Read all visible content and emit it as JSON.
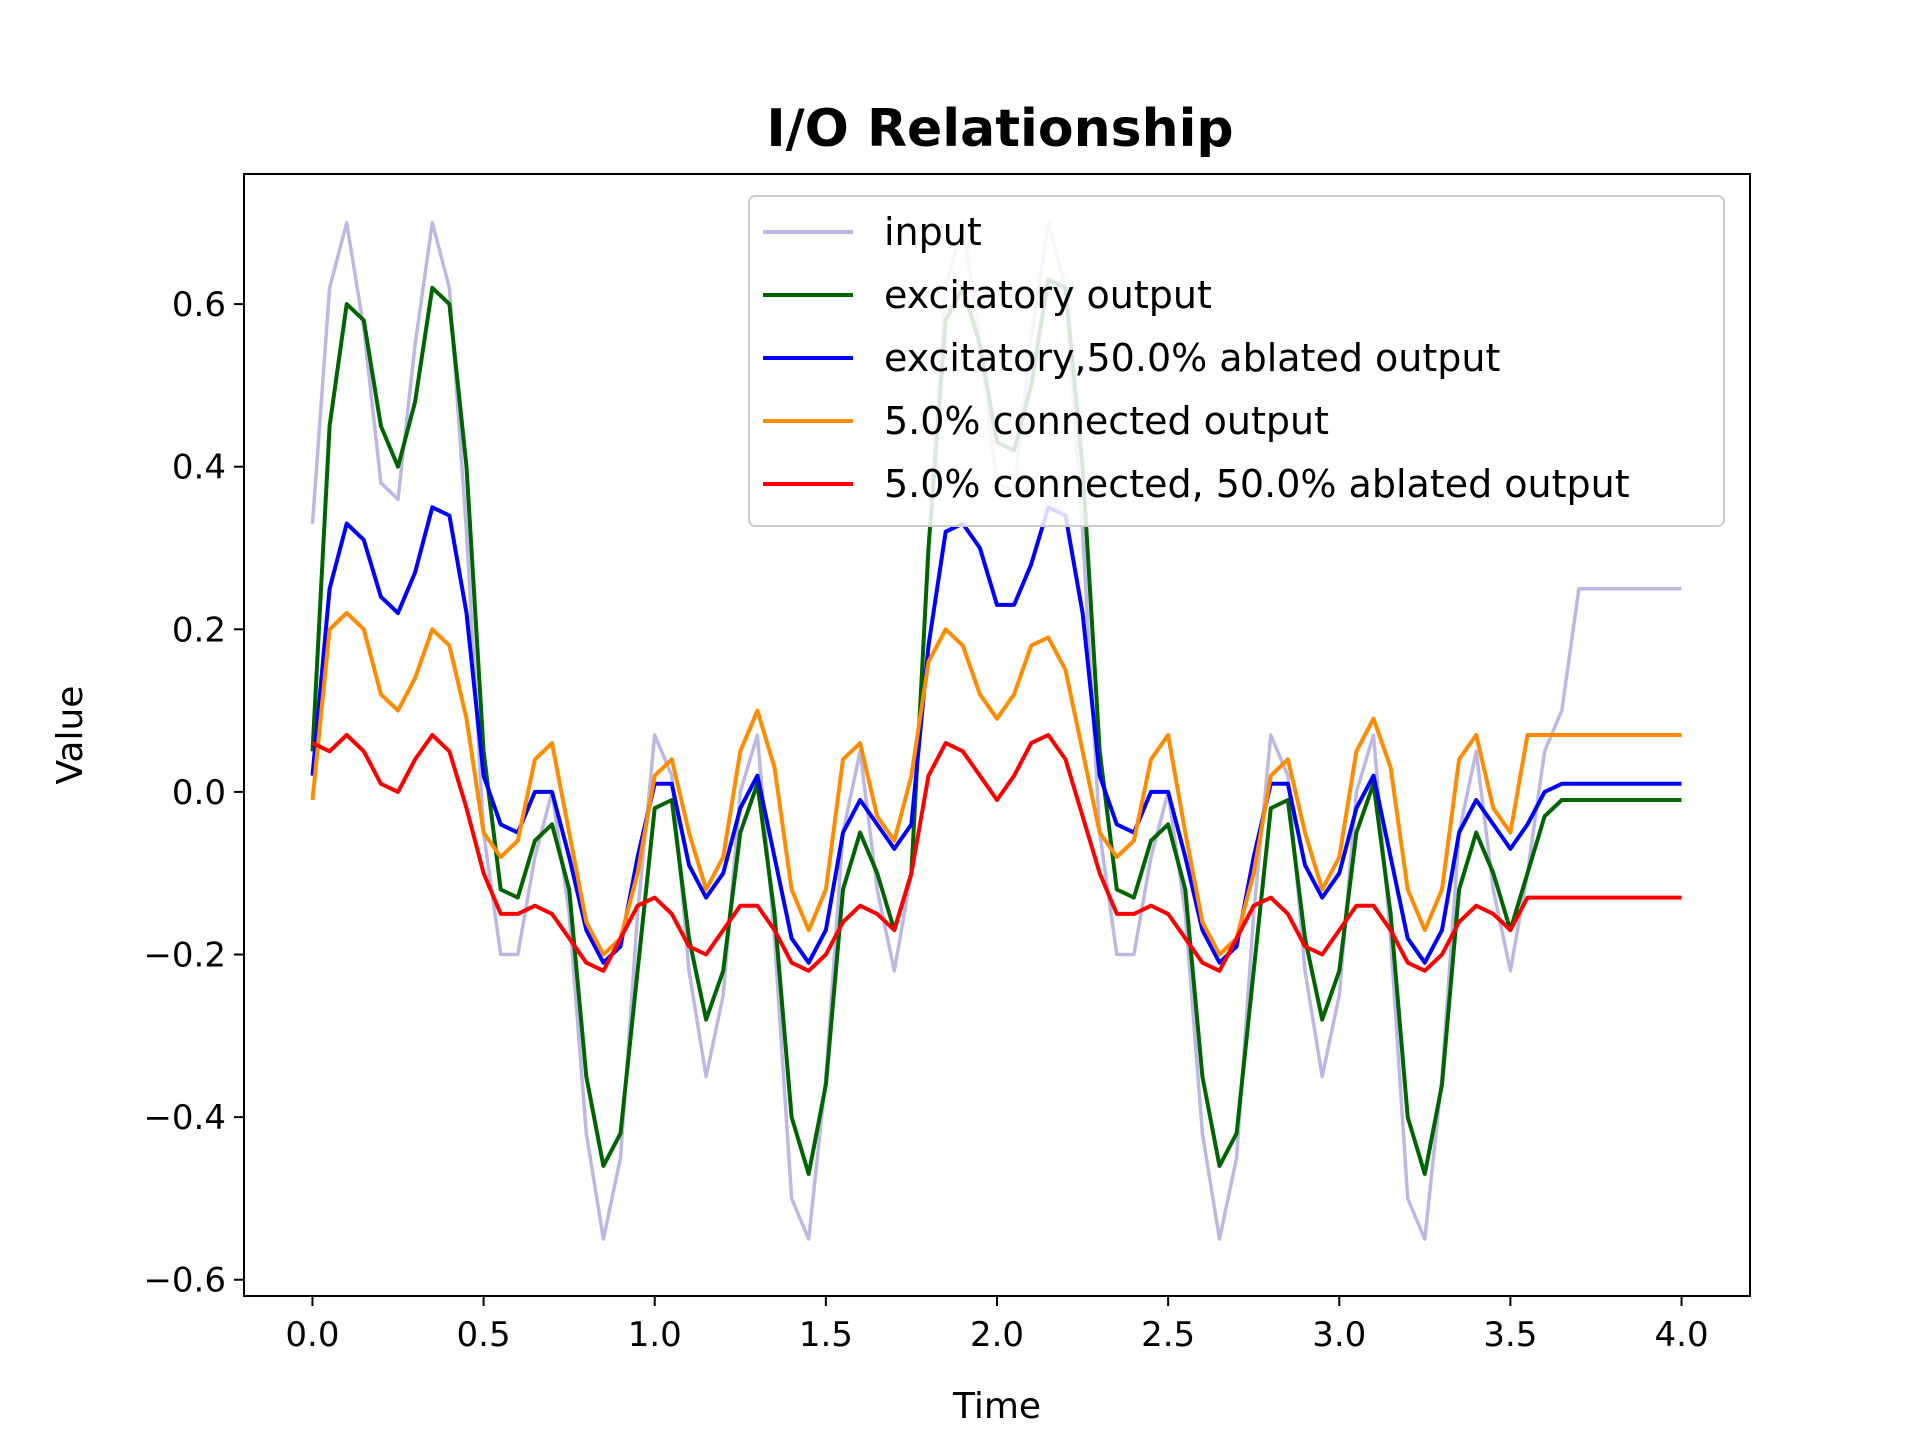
{
  "chart_data": {
    "type": "line",
    "title": "I/O Relationship",
    "xlabel": "Time",
    "ylabel": "Value",
    "xlim": [
      -0.2,
      4.2
    ],
    "ylim": [
      -0.62,
      0.76
    ],
    "xticks": [
      0.0,
      0.5,
      1.0,
      1.5,
      2.0,
      2.5,
      3.0,
      3.5,
      4.0
    ],
    "xtick_labels": [
      "0.0",
      "0.5",
      "1.0",
      "1.5",
      "2.0",
      "2.5",
      "3.0",
      "3.5",
      "4.0"
    ],
    "yticks": [
      -0.6,
      -0.4,
      -0.2,
      0.0,
      0.2,
      0.4,
      0.6
    ],
    "ytick_labels": [
      "−0.6",
      "−0.4",
      "−0.2",
      "0.0",
      "0.2",
      "0.4",
      "0.6"
    ],
    "grid": false,
    "legend_position": "top-right",
    "x": [
      0.0,
      0.05,
      0.1,
      0.15,
      0.2,
      0.25,
      0.3,
      0.35,
      0.4,
      0.45,
      0.5,
      0.55,
      0.6,
      0.65,
      0.7,
      0.75,
      0.8,
      0.85,
      0.9,
      0.95,
      1.0,
      1.05,
      1.1,
      1.15,
      1.2,
      1.25,
      1.3,
      1.35,
      1.4,
      1.45,
      1.5,
      1.55,
      1.6,
      1.65,
      1.7,
      1.75,
      1.8,
      1.85,
      1.9,
      1.95,
      2.0,
      2.05,
      2.1,
      2.15,
      2.2,
      2.25,
      2.3,
      2.35,
      2.4,
      2.45,
      2.5,
      2.55,
      2.6,
      2.65,
      2.7,
      2.75,
      2.8,
      2.85,
      2.9,
      2.95,
      3.0,
      3.05,
      3.1,
      3.15,
      3.2,
      3.25,
      3.3,
      3.35,
      3.4,
      3.45,
      3.5,
      3.55,
      3.6,
      3.65,
      3.7,
      3.75,
      3.8,
      3.85,
      3.9,
      3.95,
      4.0
    ],
    "series": [
      {
        "name": "input",
        "color": "#bdb8e3",
        "values": [
          0.33,
          0.62,
          0.7,
          0.57,
          0.38,
          0.36,
          0.55,
          0.7,
          0.62,
          0.32,
          -0.05,
          -0.2,
          -0.2,
          -0.08,
          0.0,
          -0.15,
          -0.42,
          -0.55,
          -0.45,
          -0.15,
          0.07,
          0.02,
          -0.22,
          -0.35,
          -0.25,
          0.0,
          0.07,
          -0.18,
          -0.5,
          -0.55,
          -0.35,
          -0.05,
          0.05,
          -0.12,
          -0.22,
          -0.1,
          0.3,
          0.62,
          0.7,
          0.55,
          0.38,
          0.37,
          0.56,
          0.7,
          0.62,
          0.32,
          -0.05,
          -0.2,
          -0.2,
          -0.08,
          0.0,
          -0.15,
          -0.42,
          -0.55,
          -0.45,
          -0.15,
          0.07,
          0.02,
          -0.22,
          -0.35,
          -0.25,
          0.0,
          0.07,
          -0.18,
          -0.5,
          -0.55,
          -0.35,
          -0.05,
          0.05,
          -0.12,
          -0.22,
          -0.1,
          0.05,
          0.1,
          0.25,
          0.25,
          0.25,
          0.25,
          0.25,
          0.25,
          0.25
        ]
      },
      {
        "name": "excitatory output",
        "color": "#006400",
        "values": [
          0.05,
          0.45,
          0.6,
          0.58,
          0.45,
          0.4,
          0.48,
          0.62,
          0.6,
          0.4,
          0.05,
          -0.12,
          -0.13,
          -0.06,
          -0.04,
          -0.12,
          -0.35,
          -0.46,
          -0.42,
          -0.22,
          -0.02,
          -0.01,
          -0.18,
          -0.28,
          -0.22,
          -0.05,
          0.01,
          -0.15,
          -0.4,
          -0.47,
          -0.36,
          -0.12,
          -0.05,
          -0.1,
          -0.17,
          -0.1,
          0.3,
          0.58,
          0.62,
          0.55,
          0.43,
          0.42,
          0.5,
          0.63,
          0.62,
          0.4,
          0.05,
          -0.12,
          -0.13,
          -0.06,
          -0.04,
          -0.12,
          -0.35,
          -0.46,
          -0.42,
          -0.22,
          -0.02,
          -0.01,
          -0.18,
          -0.28,
          -0.22,
          -0.05,
          0.01,
          -0.15,
          -0.4,
          -0.47,
          -0.36,
          -0.12,
          -0.05,
          -0.1,
          -0.17,
          -0.1,
          -0.03,
          -0.01,
          -0.01,
          -0.01,
          -0.01,
          -0.01,
          -0.01,
          -0.01,
          -0.01
        ]
      },
      {
        "name": "excitatory,50.0% ablated output",
        "color": "#0000ff",
        "values": [
          0.02,
          0.25,
          0.33,
          0.31,
          0.24,
          0.22,
          0.27,
          0.35,
          0.34,
          0.22,
          0.02,
          -0.04,
          -0.05,
          0.0,
          0.0,
          -0.08,
          -0.17,
          -0.21,
          -0.19,
          -0.08,
          0.01,
          0.01,
          -0.09,
          -0.13,
          -0.1,
          -0.02,
          0.02,
          -0.08,
          -0.18,
          -0.21,
          -0.17,
          -0.05,
          -0.01,
          -0.04,
          -0.07,
          -0.04,
          0.18,
          0.32,
          0.33,
          0.3,
          0.23,
          0.23,
          0.28,
          0.35,
          0.34,
          0.22,
          0.02,
          -0.04,
          -0.05,
          0.0,
          0.0,
          -0.08,
          -0.17,
          -0.21,
          -0.19,
          -0.08,
          0.01,
          0.01,
          -0.09,
          -0.13,
          -0.1,
          -0.02,
          0.02,
          -0.08,
          -0.18,
          -0.21,
          -0.17,
          -0.05,
          -0.01,
          -0.04,
          -0.07,
          -0.04,
          0.0,
          0.01,
          0.01,
          0.01,
          0.01,
          0.01,
          0.01,
          0.01,
          0.01
        ]
      },
      {
        "name": "5.0% connected output",
        "color": "#ff8c00",
        "values": [
          -0.01,
          0.2,
          0.22,
          0.2,
          0.12,
          0.1,
          0.14,
          0.2,
          0.18,
          0.09,
          -0.05,
          -0.08,
          -0.06,
          0.04,
          0.06,
          -0.05,
          -0.16,
          -0.2,
          -0.18,
          -0.1,
          0.02,
          0.04,
          -0.05,
          -0.12,
          -0.08,
          0.05,
          0.1,
          0.03,
          -0.12,
          -0.17,
          -0.12,
          0.04,
          0.06,
          -0.03,
          -0.06,
          0.02,
          0.16,
          0.2,
          0.18,
          0.12,
          0.09,
          0.12,
          0.18,
          0.19,
          0.15,
          0.05,
          -0.05,
          -0.08,
          -0.06,
          0.04,
          0.07,
          -0.05,
          -0.16,
          -0.2,
          -0.18,
          -0.1,
          0.02,
          0.04,
          -0.05,
          -0.12,
          -0.08,
          0.05,
          0.09,
          0.03,
          -0.12,
          -0.17,
          -0.12,
          0.04,
          0.07,
          -0.02,
          -0.05,
          0.07,
          0.07,
          0.07,
          0.07,
          0.07,
          0.07,
          0.07,
          0.07,
          0.07,
          0.07
        ]
      },
      {
        "name": "5.0% connected, 50.0% ablated output",
        "color": "#ff0000",
        "values": [
          0.06,
          0.05,
          0.07,
          0.05,
          0.01,
          0.0,
          0.04,
          0.07,
          0.05,
          -0.02,
          -0.1,
          -0.15,
          -0.15,
          -0.14,
          -0.15,
          -0.18,
          -0.21,
          -0.22,
          -0.18,
          -0.14,
          -0.13,
          -0.15,
          -0.19,
          -0.2,
          -0.17,
          -0.14,
          -0.14,
          -0.17,
          -0.21,
          -0.22,
          -0.2,
          -0.16,
          -0.14,
          -0.15,
          -0.17,
          -0.1,
          0.02,
          0.06,
          0.05,
          0.02,
          -0.01,
          0.02,
          0.06,
          0.07,
          0.04,
          -0.03,
          -0.1,
          -0.15,
          -0.15,
          -0.14,
          -0.15,
          -0.18,
          -0.21,
          -0.22,
          -0.18,
          -0.14,
          -0.13,
          -0.15,
          -0.19,
          -0.2,
          -0.17,
          -0.14,
          -0.14,
          -0.17,
          -0.21,
          -0.22,
          -0.2,
          -0.16,
          -0.14,
          -0.15,
          -0.17,
          -0.13,
          -0.13,
          -0.13,
          -0.13,
          -0.13,
          -0.13,
          -0.13,
          -0.13,
          -0.13,
          -0.13
        ]
      }
    ]
  }
}
